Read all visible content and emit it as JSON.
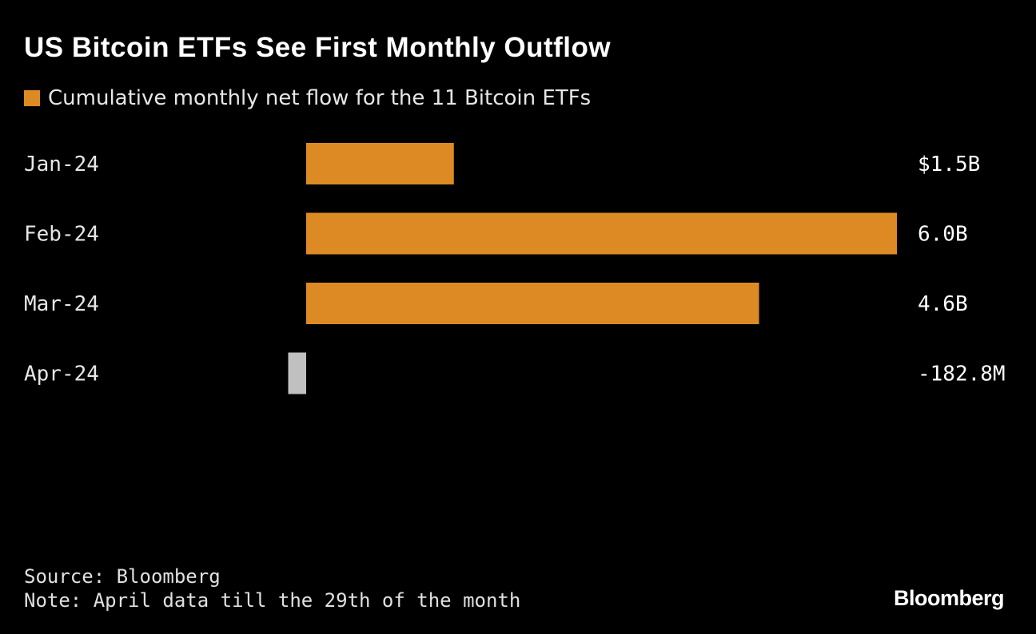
{
  "chart_data": {
    "type": "bar",
    "orientation": "horizontal",
    "title": "US Bitcoin ETFs See First Monthly Outflow",
    "legend": [
      {
        "name": "Cumulative monthly net flow for the 11 Bitcoin ETFs",
        "color": "#dd8a24"
      }
    ],
    "legend_placement": "top-left",
    "categories": [
      "Jan-24",
      "Feb-24",
      "Mar-24",
      "Apr-24"
    ],
    "values_billion_usd": [
      1.5,
      6.0,
      4.6,
      -0.1828
    ],
    "data_labels": [
      "$1.5B",
      "6.0B",
      "4.6B",
      "-182.8M"
    ],
    "colors": {
      "positive": "#dd8a24",
      "negative": "#c0c0c0"
    },
    "grid": false
  },
  "footer": {
    "source": "Source: Bloomberg",
    "note": "Note: April data till the 29th of the month",
    "logo": "Bloomberg"
  }
}
